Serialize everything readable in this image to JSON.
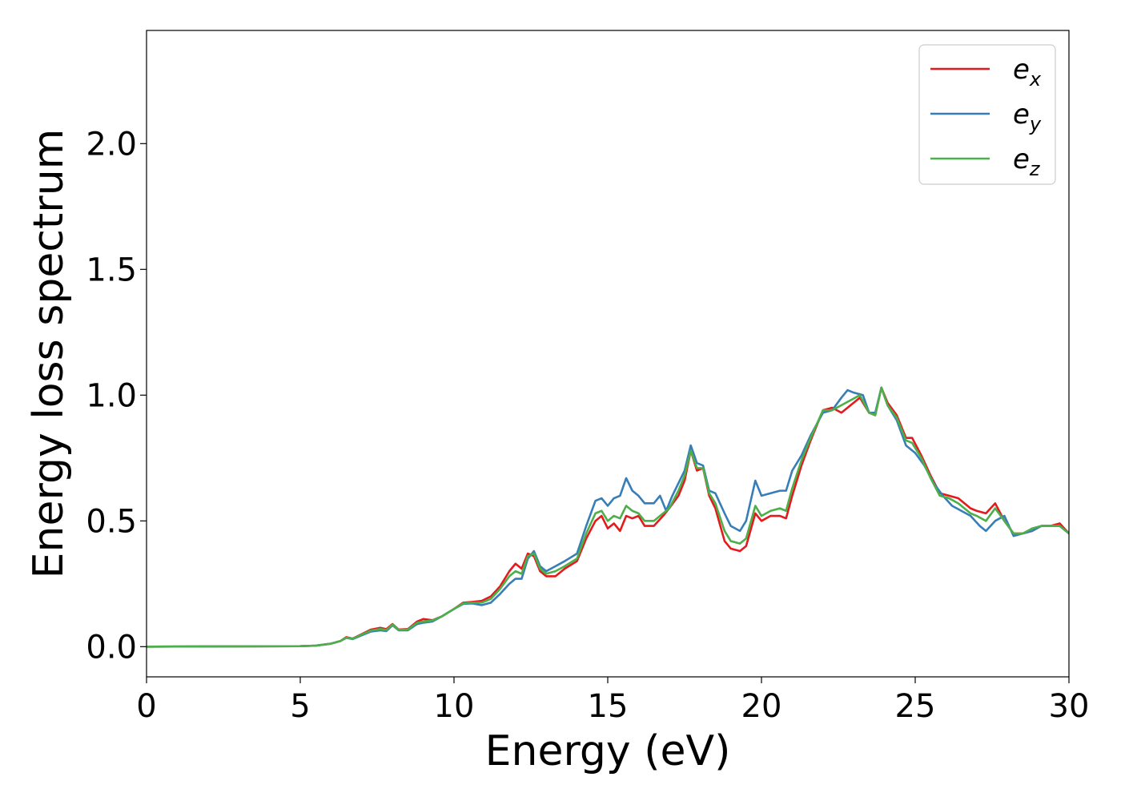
{
  "chart_data": {
    "type": "line",
    "title": "",
    "xlabel": "Energy (eV)",
    "ylabel": "Energy loss spectrum",
    "xlim": [
      0,
      30
    ],
    "ylim": [
      -0.12,
      2.45
    ],
    "xticks": [
      0,
      5,
      10,
      15,
      20,
      25,
      30
    ],
    "xtick_labels": [
      "0",
      "5",
      "10",
      "15",
      "20",
      "25",
      "30"
    ],
    "yticks": [
      0.0,
      0.5,
      1.0,
      1.5,
      2.0
    ],
    "ytick_labels": [
      "0.0",
      "0.5",
      "1.0",
      "1.5",
      "2.0"
    ],
    "grid": false,
    "legend_position": "top-right",
    "series": [
      {
        "name": "e",
        "subscript": "x",
        "color": "#e41a1c",
        "points": [
          [
            0,
            0
          ],
          [
            5,
            0.002
          ],
          [
            5.5,
            0.004
          ],
          [
            6,
            0.012
          ],
          [
            6.3,
            0.022
          ],
          [
            6.5,
            0.038
          ],
          [
            6.7,
            0.032
          ],
          [
            7,
            0.05
          ],
          [
            7.3,
            0.068
          ],
          [
            7.6,
            0.075
          ],
          [
            7.8,
            0.07
          ],
          [
            8,
            0.09
          ],
          [
            8.2,
            0.068
          ],
          [
            8.5,
            0.07
          ],
          [
            8.8,
            0.1
          ],
          [
            9,
            0.11
          ],
          [
            9.3,
            0.105
          ],
          [
            9.6,
            0.12
          ],
          [
            10,
            0.15
          ],
          [
            10.3,
            0.175
          ],
          [
            10.6,
            0.178
          ],
          [
            10.9,
            0.182
          ],
          [
            11.2,
            0.2
          ],
          [
            11.5,
            0.24
          ],
          [
            11.8,
            0.3
          ],
          [
            12,
            0.33
          ],
          [
            12.2,
            0.31
          ],
          [
            12.4,
            0.37
          ],
          [
            12.6,
            0.36
          ],
          [
            12.8,
            0.3
          ],
          [
            13,
            0.28
          ],
          [
            13.3,
            0.28
          ],
          [
            13.6,
            0.31
          ],
          [
            14,
            0.34
          ],
          [
            14.3,
            0.43
          ],
          [
            14.6,
            0.5
          ],
          [
            14.8,
            0.52
          ],
          [
            15,
            0.47
          ],
          [
            15.2,
            0.49
          ],
          [
            15.4,
            0.46
          ],
          [
            15.6,
            0.52
          ],
          [
            15.8,
            0.51
          ],
          [
            16,
            0.52
          ],
          [
            16.2,
            0.48
          ],
          [
            16.5,
            0.48
          ],
          [
            16.8,
            0.52
          ],
          [
            17,
            0.55
          ],
          [
            17.3,
            0.6
          ],
          [
            17.5,
            0.66
          ],
          [
            17.7,
            0.78
          ],
          [
            17.9,
            0.7
          ],
          [
            18.1,
            0.71
          ],
          [
            18.3,
            0.6
          ],
          [
            18.5,
            0.55
          ],
          [
            18.8,
            0.42
          ],
          [
            19,
            0.39
          ],
          [
            19.3,
            0.38
          ],
          [
            19.5,
            0.4
          ],
          [
            19.8,
            0.53
          ],
          [
            20,
            0.5
          ],
          [
            20.3,
            0.52
          ],
          [
            20.6,
            0.52
          ],
          [
            20.8,
            0.51
          ],
          [
            21,
            0.6
          ],
          [
            21.3,
            0.72
          ],
          [
            21.6,
            0.82
          ],
          [
            22,
            0.94
          ],
          [
            22.3,
            0.95
          ],
          [
            22.6,
            0.93
          ],
          [
            22.9,
            0.96
          ],
          [
            23.2,
            0.99
          ],
          [
            23.5,
            0.93
          ],
          [
            23.7,
            0.92
          ],
          [
            23.9,
            1.03
          ],
          [
            24.1,
            0.97
          ],
          [
            24.4,
            0.92
          ],
          [
            24.7,
            0.83
          ],
          [
            24.9,
            0.83
          ],
          [
            25.2,
            0.76
          ],
          [
            25.5,
            0.68
          ],
          [
            25.8,
            0.61
          ],
          [
            26.1,
            0.6
          ],
          [
            26.4,
            0.59
          ],
          [
            26.8,
            0.55
          ],
          [
            27,
            0.54
          ],
          [
            27.3,
            0.53
          ],
          [
            27.6,
            0.57
          ],
          [
            27.9,
            0.5
          ],
          [
            28.2,
            0.45
          ],
          [
            28.5,
            0.45
          ],
          [
            28.8,
            0.46
          ],
          [
            29.1,
            0.48
          ],
          [
            29.4,
            0.48
          ],
          [
            29.7,
            0.49
          ],
          [
            30,
            0.45
          ]
        ]
      },
      {
        "name": "e",
        "subscript": "y",
        "color": "#377eb8",
        "points": [
          [
            0,
            0
          ],
          [
            5,
            0.002
          ],
          [
            5.5,
            0.004
          ],
          [
            6,
            0.012
          ],
          [
            6.3,
            0.022
          ],
          [
            6.5,
            0.035
          ],
          [
            6.7,
            0.03
          ],
          [
            7,
            0.045
          ],
          [
            7.3,
            0.06
          ],
          [
            7.6,
            0.065
          ],
          [
            7.8,
            0.062
          ],
          [
            8,
            0.085
          ],
          [
            8.2,
            0.065
          ],
          [
            8.5,
            0.065
          ],
          [
            8.8,
            0.09
          ],
          [
            9,
            0.095
          ],
          [
            9.3,
            0.1
          ],
          [
            9.6,
            0.12
          ],
          [
            10,
            0.15
          ],
          [
            10.3,
            0.17
          ],
          [
            10.6,
            0.172
          ],
          [
            10.9,
            0.165
          ],
          [
            11.2,
            0.175
          ],
          [
            11.5,
            0.21
          ],
          [
            11.8,
            0.25
          ],
          [
            12,
            0.27
          ],
          [
            12.2,
            0.27
          ],
          [
            12.4,
            0.35
          ],
          [
            12.6,
            0.38
          ],
          [
            12.8,
            0.32
          ],
          [
            13,
            0.3
          ],
          [
            13.3,
            0.32
          ],
          [
            13.6,
            0.34
          ],
          [
            14,
            0.37
          ],
          [
            14.3,
            0.48
          ],
          [
            14.6,
            0.58
          ],
          [
            14.8,
            0.59
          ],
          [
            15,
            0.56
          ],
          [
            15.2,
            0.59
          ],
          [
            15.4,
            0.6
          ],
          [
            15.6,
            0.67
          ],
          [
            15.8,
            0.62
          ],
          [
            16,
            0.6
          ],
          [
            16.2,
            0.57
          ],
          [
            16.5,
            0.57
          ],
          [
            16.7,
            0.6
          ],
          [
            16.9,
            0.54
          ],
          [
            17.1,
            0.6
          ],
          [
            17.3,
            0.65
          ],
          [
            17.5,
            0.7
          ],
          [
            17.7,
            0.8
          ],
          [
            17.9,
            0.73
          ],
          [
            18.1,
            0.72
          ],
          [
            18.3,
            0.62
          ],
          [
            18.5,
            0.61
          ],
          [
            18.8,
            0.53
          ],
          [
            19,
            0.48
          ],
          [
            19.3,
            0.46
          ],
          [
            19.5,
            0.5
          ],
          [
            19.8,
            0.66
          ],
          [
            20,
            0.6
          ],
          [
            20.3,
            0.61
          ],
          [
            20.6,
            0.62
          ],
          [
            20.8,
            0.62
          ],
          [
            21,
            0.7
          ],
          [
            21.3,
            0.76
          ],
          [
            21.6,
            0.84
          ],
          [
            22,
            0.93
          ],
          [
            22.3,
            0.94
          ],
          [
            22.6,
            0.99
          ],
          [
            22.8,
            1.02
          ],
          [
            23,
            1.01
          ],
          [
            23.3,
            1.0
          ],
          [
            23.5,
            0.93
          ],
          [
            23.7,
            0.93
          ],
          [
            23.9,
            1.03
          ],
          [
            24.1,
            0.96
          ],
          [
            24.4,
            0.9
          ],
          [
            24.7,
            0.8
          ],
          [
            25,
            0.77
          ],
          [
            25.3,
            0.72
          ],
          [
            25.6,
            0.65
          ],
          [
            25.9,
            0.6
          ],
          [
            26.2,
            0.56
          ],
          [
            26.5,
            0.54
          ],
          [
            26.8,
            0.52
          ],
          [
            27.1,
            0.48
          ],
          [
            27.3,
            0.46
          ],
          [
            27.6,
            0.5
          ],
          [
            27.9,
            0.52
          ],
          [
            28.2,
            0.44
          ],
          [
            28.5,
            0.45
          ],
          [
            28.8,
            0.46
          ],
          [
            29.1,
            0.48
          ],
          [
            29.4,
            0.48
          ],
          [
            29.7,
            0.48
          ],
          [
            30,
            0.45
          ]
        ]
      },
      {
        "name": "e",
        "subscript": "z",
        "color": "#4daf4a",
        "points": [
          [
            0,
            0
          ],
          [
            5,
            0.002
          ],
          [
            5.5,
            0.004
          ],
          [
            6,
            0.012
          ],
          [
            6.3,
            0.022
          ],
          [
            6.5,
            0.036
          ],
          [
            6.7,
            0.031
          ],
          [
            7,
            0.048
          ],
          [
            7.3,
            0.064
          ],
          [
            7.6,
            0.07
          ],
          [
            7.8,
            0.066
          ],
          [
            8,
            0.088
          ],
          [
            8.2,
            0.067
          ],
          [
            8.5,
            0.068
          ],
          [
            8.8,
            0.095
          ],
          [
            9,
            0.1
          ],
          [
            9.3,
            0.104
          ],
          [
            9.6,
            0.12
          ],
          [
            10,
            0.15
          ],
          [
            10.3,
            0.172
          ],
          [
            10.6,
            0.175
          ],
          [
            10.9,
            0.175
          ],
          [
            11.2,
            0.19
          ],
          [
            11.5,
            0.23
          ],
          [
            11.8,
            0.28
          ],
          [
            12,
            0.3
          ],
          [
            12.2,
            0.29
          ],
          [
            12.4,
            0.36
          ],
          [
            12.6,
            0.37
          ],
          [
            12.8,
            0.31
          ],
          [
            13,
            0.29
          ],
          [
            13.3,
            0.3
          ],
          [
            13.6,
            0.32
          ],
          [
            14,
            0.35
          ],
          [
            14.3,
            0.45
          ],
          [
            14.6,
            0.53
          ],
          [
            14.8,
            0.54
          ],
          [
            15,
            0.5
          ],
          [
            15.2,
            0.52
          ],
          [
            15.4,
            0.51
          ],
          [
            15.6,
            0.56
          ],
          [
            15.8,
            0.54
          ],
          [
            16,
            0.53
          ],
          [
            16.2,
            0.5
          ],
          [
            16.5,
            0.5
          ],
          [
            16.8,
            0.53
          ],
          [
            17,
            0.55
          ],
          [
            17.3,
            0.62
          ],
          [
            17.5,
            0.68
          ],
          [
            17.7,
            0.78
          ],
          [
            17.9,
            0.71
          ],
          [
            18.1,
            0.71
          ],
          [
            18.3,
            0.61
          ],
          [
            18.5,
            0.57
          ],
          [
            18.8,
            0.46
          ],
          [
            19,
            0.42
          ],
          [
            19.3,
            0.41
          ],
          [
            19.5,
            0.43
          ],
          [
            19.8,
            0.56
          ],
          [
            20,
            0.52
          ],
          [
            20.3,
            0.54
          ],
          [
            20.6,
            0.55
          ],
          [
            20.8,
            0.54
          ],
          [
            21,
            0.63
          ],
          [
            21.3,
            0.74
          ],
          [
            21.6,
            0.83
          ],
          [
            22,
            0.94
          ],
          [
            22.3,
            0.94
          ],
          [
            22.6,
            0.96
          ],
          [
            22.9,
            0.98
          ],
          [
            23.2,
            1.0
          ],
          [
            23.5,
            0.93
          ],
          [
            23.7,
            0.92
          ],
          [
            23.9,
            1.03
          ],
          [
            24.1,
            0.96
          ],
          [
            24.4,
            0.91
          ],
          [
            24.7,
            0.82
          ],
          [
            24.9,
            0.81
          ],
          [
            25.2,
            0.75
          ],
          [
            25.5,
            0.67
          ],
          [
            25.8,
            0.6
          ],
          [
            26.1,
            0.59
          ],
          [
            26.4,
            0.57
          ],
          [
            26.8,
            0.53
          ],
          [
            27,
            0.52
          ],
          [
            27.3,
            0.5
          ],
          [
            27.6,
            0.55
          ],
          [
            27.9,
            0.5
          ],
          [
            28.2,
            0.45
          ],
          [
            28.5,
            0.45
          ],
          [
            28.8,
            0.47
          ],
          [
            29.1,
            0.48
          ],
          [
            29.4,
            0.48
          ],
          [
            29.7,
            0.48
          ],
          [
            30,
            0.45
          ]
        ]
      }
    ]
  }
}
